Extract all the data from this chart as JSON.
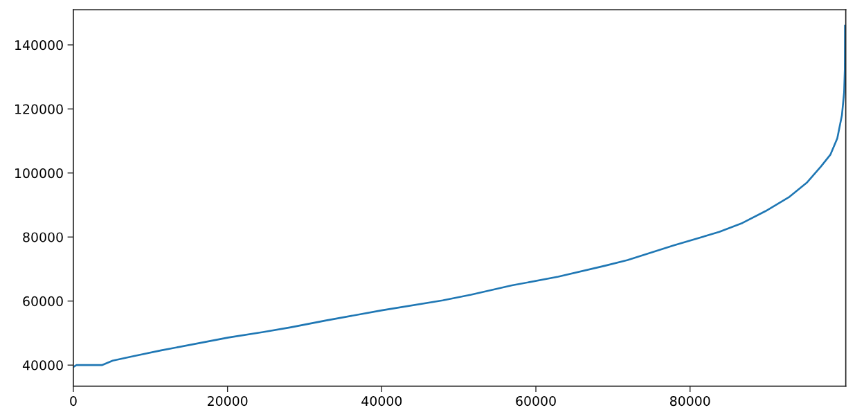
{
  "chart_data": {
    "type": "line",
    "x": [
      0,
      400,
      3700,
      5100,
      7800,
      11400,
      20100,
      24600,
      28200,
      32700,
      40000,
      47900,
      51600,
      56900,
      62900,
      68900,
      71900,
      77900,
      83800,
      86800,
      89800,
      92800,
      95200,
      97000,
      98200,
      99100,
      99700,
      99990,
      100080,
      100100
    ],
    "values": [
      39400,
      40000,
      40000,
      41400,
      42800,
      44600,
      48600,
      50300,
      51800,
      53900,
      57100,
      60200,
      62000,
      64900,
      67600,
      71000,
      72800,
      77400,
      81600,
      84400,
      88100,
      92400,
      97100,
      102100,
      105700,
      110800,
      118000,
      125200,
      132400,
      146000
    ],
    "color": "#1f77b4",
    "line_style": "solid",
    "marker": "none",
    "xlim": [
      0,
      100200
    ],
    "ylim": [
      33400,
      151000
    ],
    "xticks": [
      0,
      20000,
      40000,
      60000,
      80000
    ],
    "yticks": [
      40000,
      60000,
      80000,
      100000,
      120000,
      140000
    ],
    "grid": false
  }
}
